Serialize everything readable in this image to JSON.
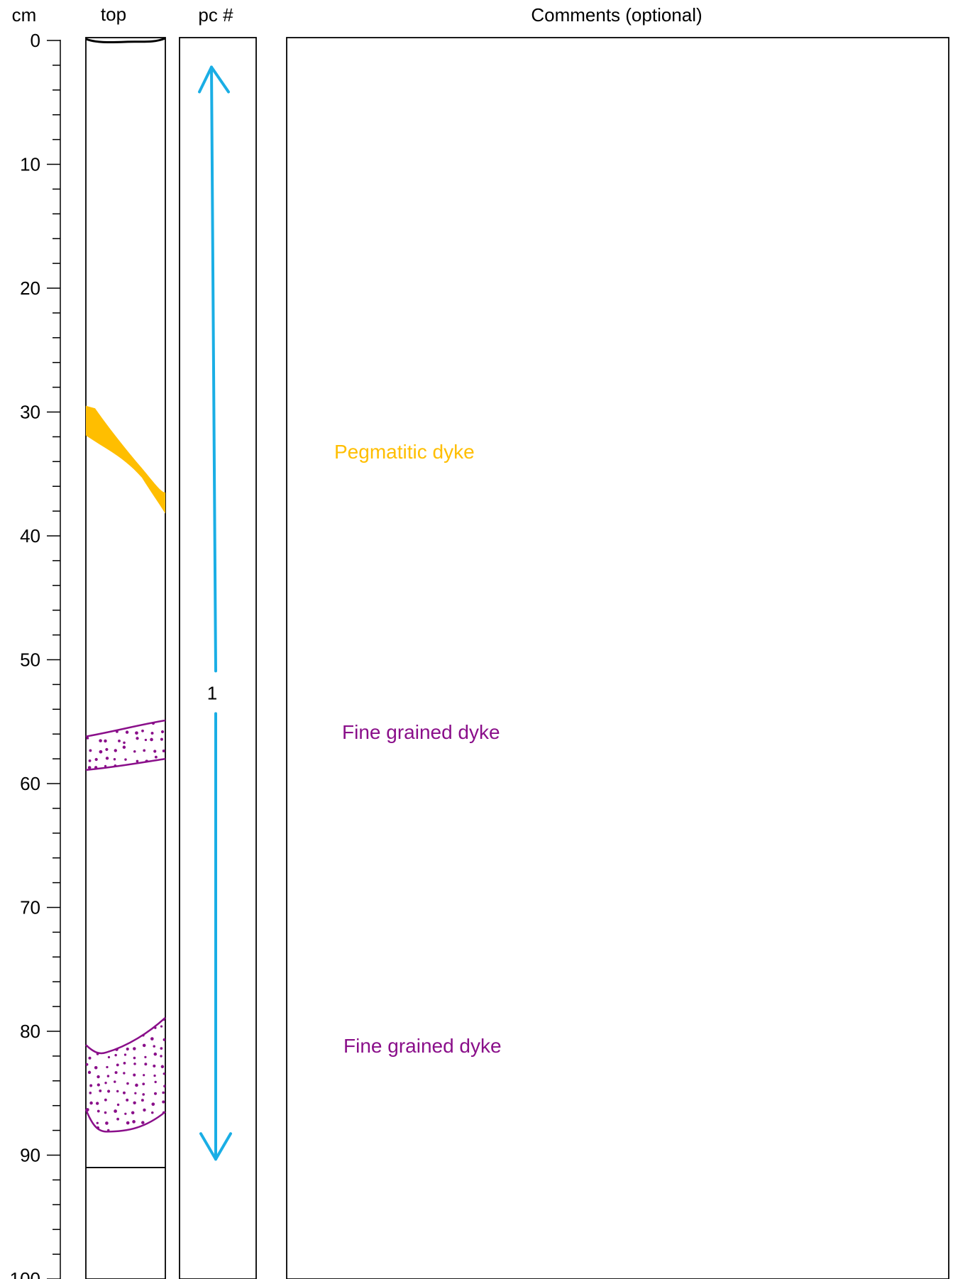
{
  "headers": {
    "depth_unit": "cm",
    "core_column": "top",
    "piece_column": "pc #",
    "comments_column": "Comments (optional)"
  },
  "depth_scale": {
    "min": 0,
    "max": 100,
    "major_step": 10,
    "minor_step": 2,
    "tick_labels": [
      "0",
      "10",
      "20",
      "30",
      "40",
      "50",
      "60",
      "70",
      "80",
      "90",
      "100"
    ]
  },
  "core_end_depth_cm": 91,
  "pieces": [
    {
      "number": "1",
      "top_cm": 1,
      "bottom_cm": 90.5,
      "arrow_color": "#1aaee5"
    }
  ],
  "features": [
    {
      "label": "Pegmatitic dyke",
      "top_cm": 29.5,
      "bottom_cm": 38.2,
      "color": "#ffbe00",
      "fill": "solid"
    },
    {
      "label": "Fine grained dyke",
      "top_cm": 55,
      "bottom_cm": 59,
      "color": "#8a0f8a",
      "fill": "dotted"
    },
    {
      "label": "Fine grained dyke",
      "top_cm": 79,
      "bottom_cm": 88,
      "color": "#8a0f8a",
      "fill": "dotted"
    }
  ],
  "comments": []
}
